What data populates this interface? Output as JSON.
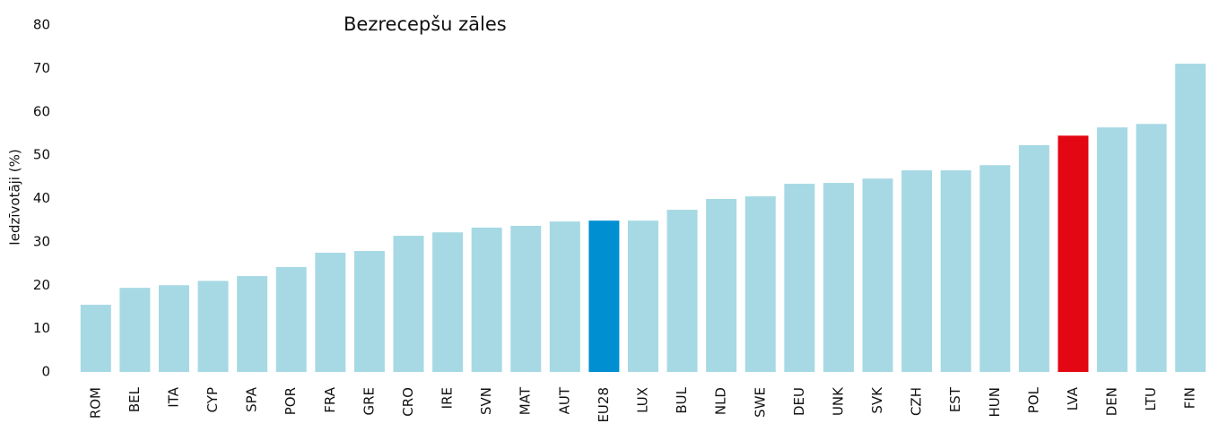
{
  "chart_data": {
    "type": "bar",
    "title": "Bezrecepšu zāles",
    "y_label": "Iedzīvotāji (%)",
    "categories": [
      "ROM",
      "BEL",
      "ITA",
      "CYP",
      "SPA",
      "POR",
      "FRA",
      "GRE",
      "CRO",
      "IRE",
      "SVN",
      "MAT",
      "AUT",
      "EU28",
      "LUX",
      "BUL",
      "NLD",
      "SWE",
      "DEU",
      "UNK",
      "SVK",
      "CZH",
      "EST",
      "HUN",
      "POL",
      "LVA",
      "DEN",
      "LTU",
      "FIN"
    ],
    "values": [
      15.5,
      19.4,
      20,
      21,
      22.1,
      24.2,
      27.5,
      27.9,
      31.4,
      32.2,
      33.3,
      33.7,
      34.7,
      34.9,
      34.9,
      37.4,
      39.9,
      40.5,
      43.4,
      43.6,
      44.6,
      46.5,
      46.5,
      47.7,
      52.3,
      54.5,
      56.4,
      57.2,
      71.1
    ],
    "colors": [
      "#a6d9e4",
      "#a6d9e4",
      "#a6d9e4",
      "#a6d9e4",
      "#a6d9e4",
      "#a6d9e4",
      "#a6d9e4",
      "#a6d9e4",
      "#a6d9e4",
      "#a6d9e4",
      "#a6d9e4",
      "#a6d9e4",
      "#a6d9e4",
      "#008fd0",
      "#a6d9e4",
      "#a6d9e4",
      "#a6d9e4",
      "#a6d9e4",
      "#a6d9e4",
      "#a6d9e4",
      "#a6d9e4",
      "#a6d9e4",
      "#a6d9e4",
      "#a6d9e4",
      "#a6d9e4",
      "#e30613",
      "#a6d9e4",
      "#a6d9e4",
      "#a6d9e4"
    ],
    "ylim": [
      0,
      80
    ],
    "yticks": [
      0,
      10,
      20,
      30,
      40,
      50,
      60,
      70,
      80
    ],
    "grid": false
  }
}
